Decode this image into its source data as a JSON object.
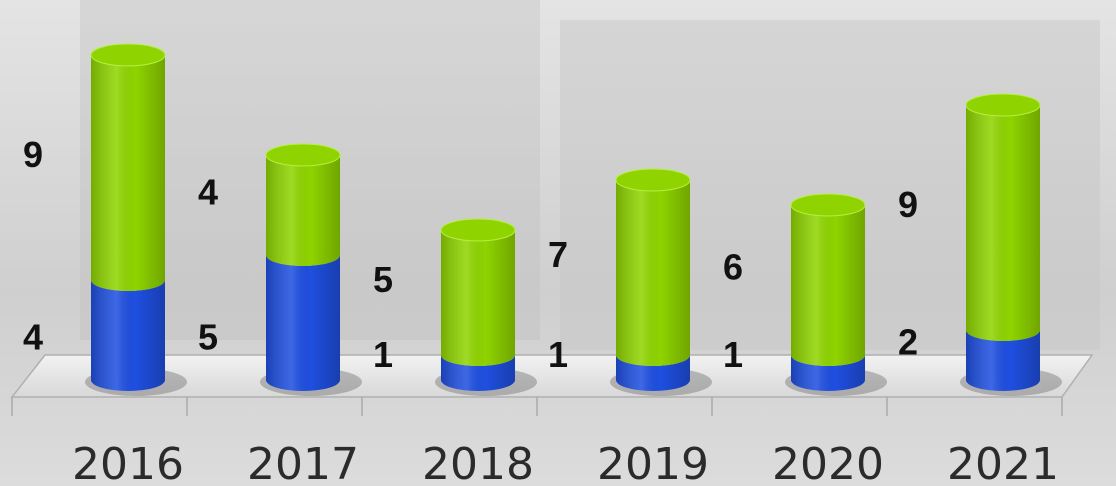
{
  "chart_data": {
    "type": "stacked_bar",
    "categories": [
      "2016",
      "2017",
      "2018",
      "2019",
      "2020",
      "2021"
    ],
    "series": [
      {
        "color": "#1f4fe0",
        "values": [
          4,
          5,
          1,
          1,
          1,
          2
        ]
      },
      {
        "color": "#8fd400",
        "values": [
          9,
          4,
          5,
          7,
          6,
          9
        ]
      }
    ]
  }
}
